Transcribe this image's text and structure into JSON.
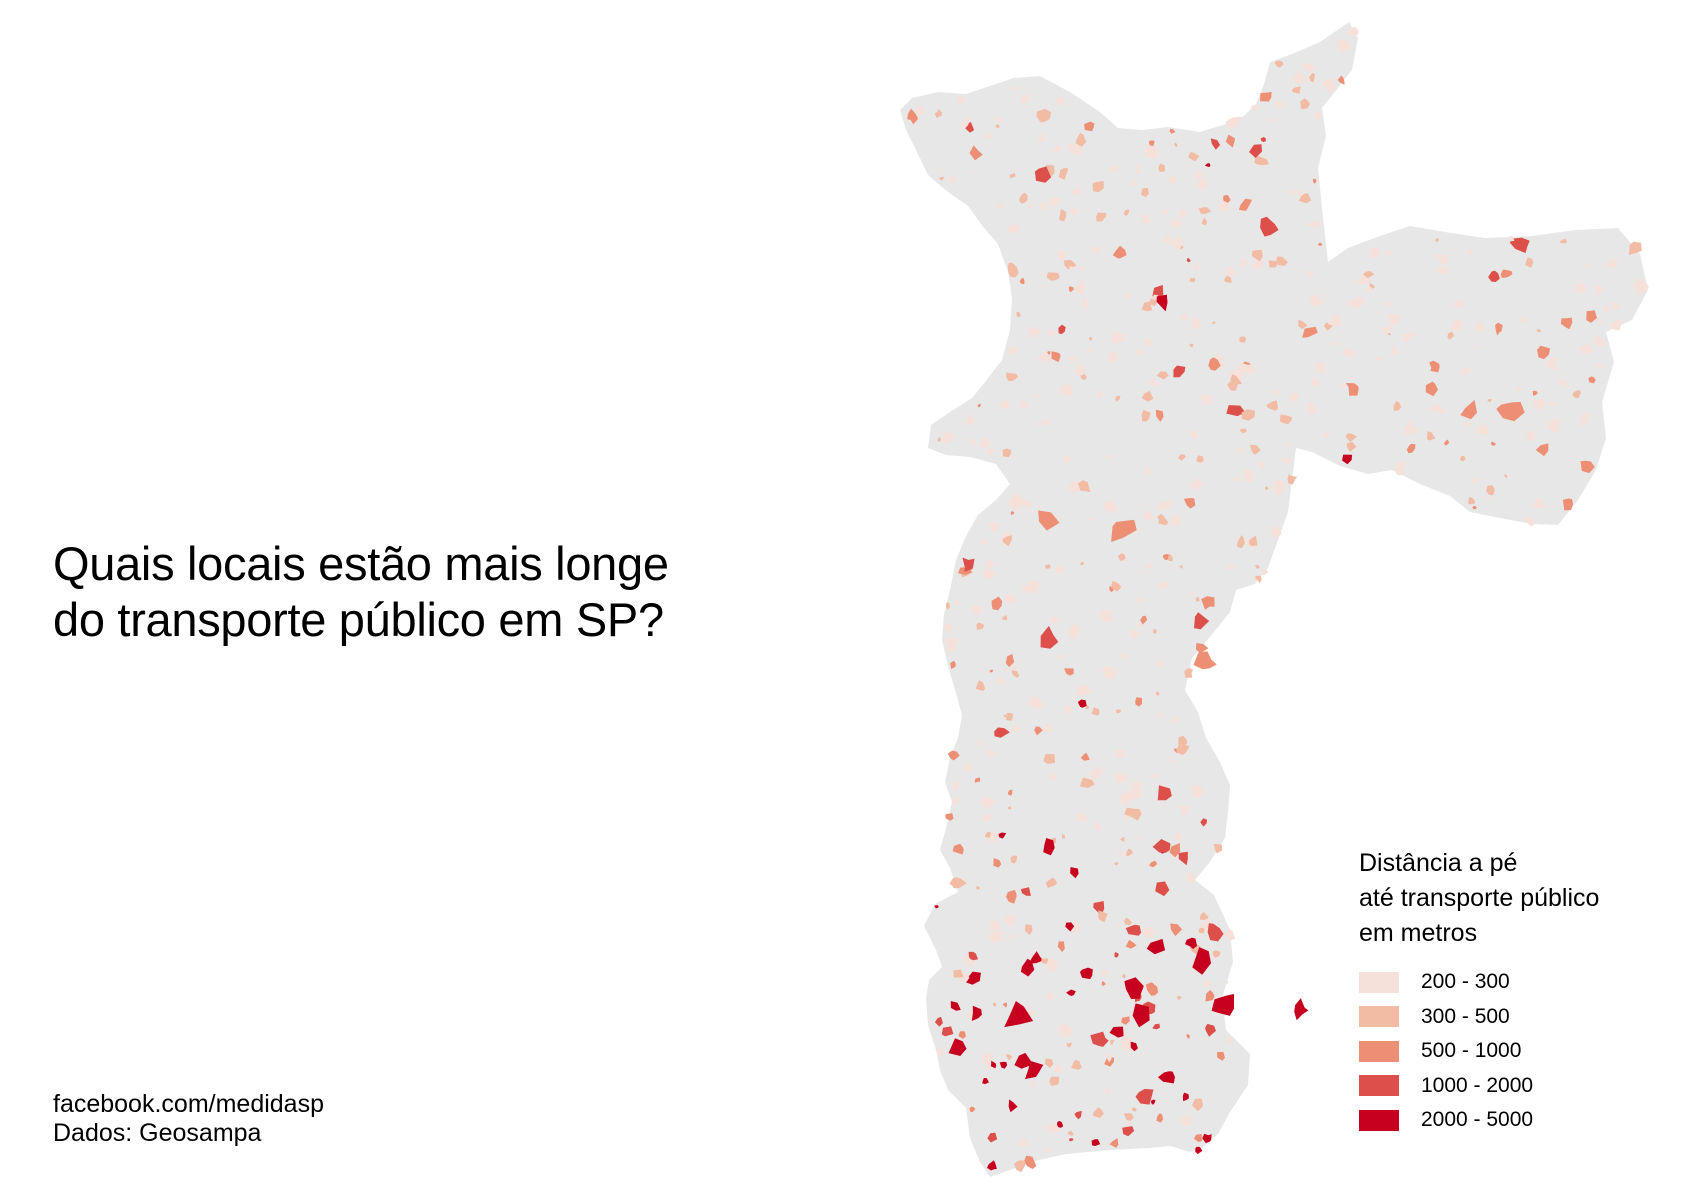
{
  "title": {
    "line1": "Quais locais estão mais longe",
    "line2": "do transporte público em SP?"
  },
  "credits": {
    "line1": "facebook.com/medidasp",
    "line2": "Dados: Geosampa"
  },
  "legend": {
    "title_line1": "Distância a pé",
    "title_line2": "até transporte público",
    "title_line3": "em metros",
    "items": [
      {
        "label": "200 - 300",
        "color": "#f6e0da"
      },
      {
        "label": "300 - 500",
        "color": "#f2bba4"
      },
      {
        "label": "500 - 1000",
        "color": "#ed8f74"
      },
      {
        "label": "1000 - 2000",
        "color": "#dd4f4b"
      },
      {
        "label": "2000 - 5000",
        "color": "#c8001f"
      }
    ]
  },
  "map": {
    "region": "São Paulo",
    "base_color": "#e7e7e7"
  }
}
